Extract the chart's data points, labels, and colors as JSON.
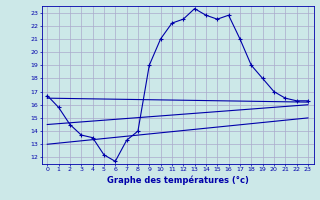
{
  "title": "Graphe des températures (°c)",
  "bg_color": "#cce8e8",
  "grid_color": "#aaaacc",
  "line_color": "#0000aa",
  "xlim": [
    -0.5,
    23.5
  ],
  "ylim": [
    11.5,
    23.5
  ],
  "xticks": [
    0,
    1,
    2,
    3,
    4,
    5,
    6,
    7,
    8,
    9,
    10,
    11,
    12,
    13,
    14,
    15,
    16,
    17,
    18,
    19,
    20,
    21,
    22,
    23
  ],
  "yticks": [
    12,
    13,
    14,
    15,
    16,
    17,
    18,
    19,
    20,
    21,
    22,
    23
  ],
  "series1_x": [
    0,
    1,
    2,
    3,
    4,
    5,
    6,
    7,
    8,
    9,
    10,
    11,
    12,
    13,
    14,
    15,
    16,
    17,
    18,
    19,
    20,
    21,
    22,
    23
  ],
  "series1_y": [
    16.7,
    15.8,
    14.5,
    13.7,
    13.5,
    12.2,
    11.7,
    13.3,
    14.0,
    19.0,
    21.0,
    22.2,
    22.5,
    23.3,
    22.8,
    22.5,
    22.8,
    21.0,
    19.0,
    18.0,
    17.0,
    16.5,
    16.3,
    16.3
  ],
  "series2_x": [
    0,
    23
  ],
  "series2_y": [
    16.5,
    16.2
  ],
  "series3_x": [
    0,
    23
  ],
  "series3_y": [
    14.5,
    16.0
  ],
  "series4_x": [
    0,
    23
  ],
  "series4_y": [
    13.0,
    15.0
  ],
  "xlabel_fontsize": 6.0,
  "tick_fontsize": 4.5,
  "lw": 0.8
}
